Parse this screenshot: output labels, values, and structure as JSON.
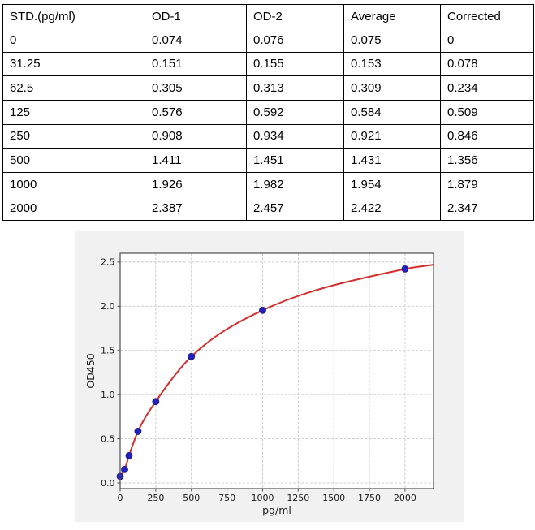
{
  "table": {
    "headers": [
      "STD.(pg/ml)",
      "OD-1",
      "OD-2",
      "Average",
      "Corrected"
    ],
    "rows": [
      [
        "0",
        "0.074",
        "0.076",
        "0.075",
        "0"
      ],
      [
        "31.25",
        "0.151",
        "0.155",
        "0.153",
        "0.078"
      ],
      [
        "62.5",
        "0.305",
        "0.313",
        "0.309",
        "0.234"
      ],
      [
        "125",
        "0.576",
        "0.592",
        "0.584",
        "0.509"
      ],
      [
        "250",
        "0.908",
        "0.934",
        "0.921",
        "0.846"
      ],
      [
        "500",
        "1.411",
        "1.451",
        "1.431",
        "1.356"
      ],
      [
        "1000",
        "1.926",
        "1.982",
        "1.954",
        "1.879"
      ],
      [
        "2000",
        "2.387",
        "2.457",
        "2.422",
        "2.347"
      ]
    ]
  },
  "chart_data": {
    "type": "scatter",
    "title": "",
    "xlabel": "pg/ml",
    "ylabel": "OD450",
    "x": [
      0,
      31.25,
      62.5,
      125,
      250,
      500,
      1000,
      2000
    ],
    "y": [
      0.075,
      0.153,
      0.309,
      0.584,
      0.921,
      1.431,
      1.954,
      2.422
    ],
    "fit": {
      "style": "smooth standard-curve fit through the points",
      "extension_point": {
        "x": 2200,
        "y": 2.47
      }
    },
    "xlim": [
      0,
      2200
    ],
    "ylim": [
      -0.064,
      2.6
    ],
    "xticks": [
      0,
      250,
      500,
      750,
      1000,
      1250,
      1500,
      1750,
      2000
    ],
    "yticks": [
      0,
      0.5,
      1,
      1.5,
      2,
      2.5
    ],
    "ytick_labels": [
      "0.0",
      "0.5",
      "1.0",
      "1.5",
      "2.0",
      "2.5"
    ],
    "grid": true,
    "legend": "none",
    "colors": {
      "curve": "#d42f2f",
      "point_fill": "#2222bb",
      "point_edge": "#15158a",
      "figure_bg": "#f1f1f2",
      "plot_bg": "#ffffff",
      "grid": "#c8c8c8",
      "spine": "#4d4d4d",
      "text": "#1a1a1a"
    }
  }
}
